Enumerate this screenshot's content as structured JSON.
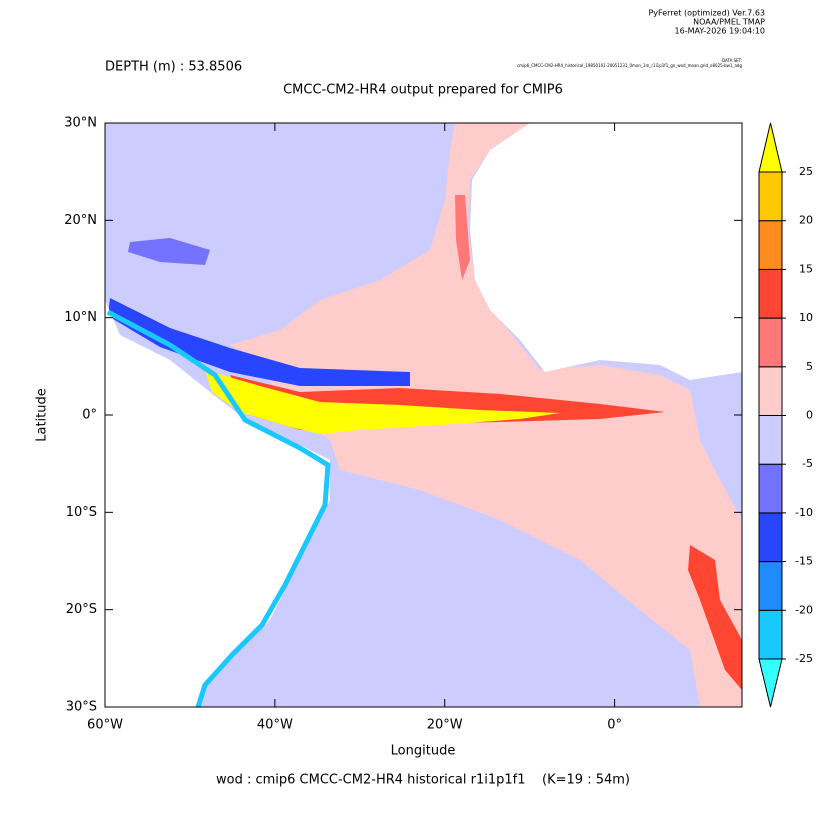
{
  "header": {
    "program": "PyFerret (optimized) Ver.7.63",
    "org": "NOAA/PMEL TMAP",
    "date": "16-MAY-2026 19:04:10",
    "dataset_label": "DATA SET:",
    "dataset": "cmip6_CMCC-CM2-HR4_historical_19850101-20051231_0mon_1m_r1i1p1f1_gn_wod_mean.grid_o8025-bw1_adg"
  },
  "depth": "DEPTH (m) : 53.8506",
  "title": "CMCC-CM2-HR4 output prepared for CMIP6",
  "footer": "wod : cmip6 CMCC-CM2-HR4 historical r1i1p1f1    (K=19 : 54m)",
  "axes": {
    "x_label": "Longitude",
    "y_label": "Latitude",
    "xlim": [
      -60,
      15
    ],
    "ylim": [
      -30,
      30
    ],
    "xticks": [
      {
        "value": -60,
        "label": "60°W"
      },
      {
        "value": -40,
        "label": "40°W"
      },
      {
        "value": -20,
        "label": "20°W"
      },
      {
        "value": 0,
        "label": "0°"
      }
    ],
    "yticks": [
      {
        "value": -30,
        "label": "30°S"
      },
      {
        "value": -20,
        "label": "20°S"
      },
      {
        "value": -10,
        "label": "10°S"
      },
      {
        "value": 0,
        "label": "0°"
      },
      {
        "value": 10,
        "label": "10°N"
      },
      {
        "value": 20,
        "label": "20°N"
      },
      {
        "value": 30,
        "label": "30°N"
      }
    ]
  },
  "colorbar": {
    "levels": [
      -25,
      -20,
      -15,
      -10,
      -5,
      0,
      5,
      10,
      15,
      20,
      25
    ],
    "colors": [
      "#33ffff",
      "#19c8ff",
      "#1e8cff",
      "#2846ff",
      "#7373ff",
      "#ccccff",
      "#ffcccc",
      "#ff7878",
      "#ff4632",
      "#ff8c1e",
      "#ffc800",
      "#ffff00"
    ]
  }
}
